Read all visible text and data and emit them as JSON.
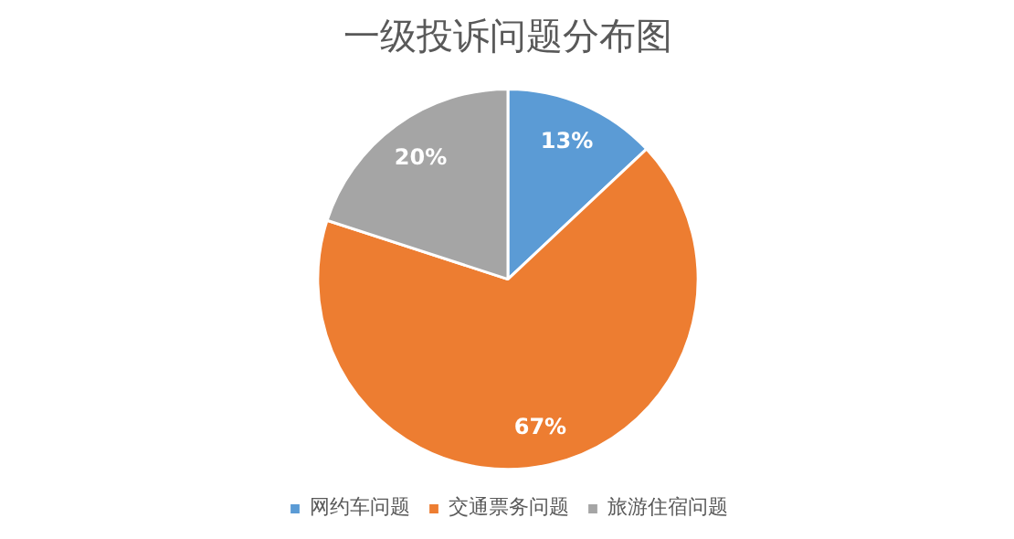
{
  "chart_data": {
    "type": "pie",
    "title": "一级投诉问题分布图",
    "categories": [
      "网约车问题",
      "交通票务问题",
      "旅游住宿问题"
    ],
    "values": [
      13,
      67,
      20
    ],
    "colors": [
      "#5b9bd5",
      "#ed7d31",
      "#a5a5a5"
    ],
    "value_labels": [
      "13%",
      "67%",
      "20%"
    ],
    "legend": "bottom"
  }
}
